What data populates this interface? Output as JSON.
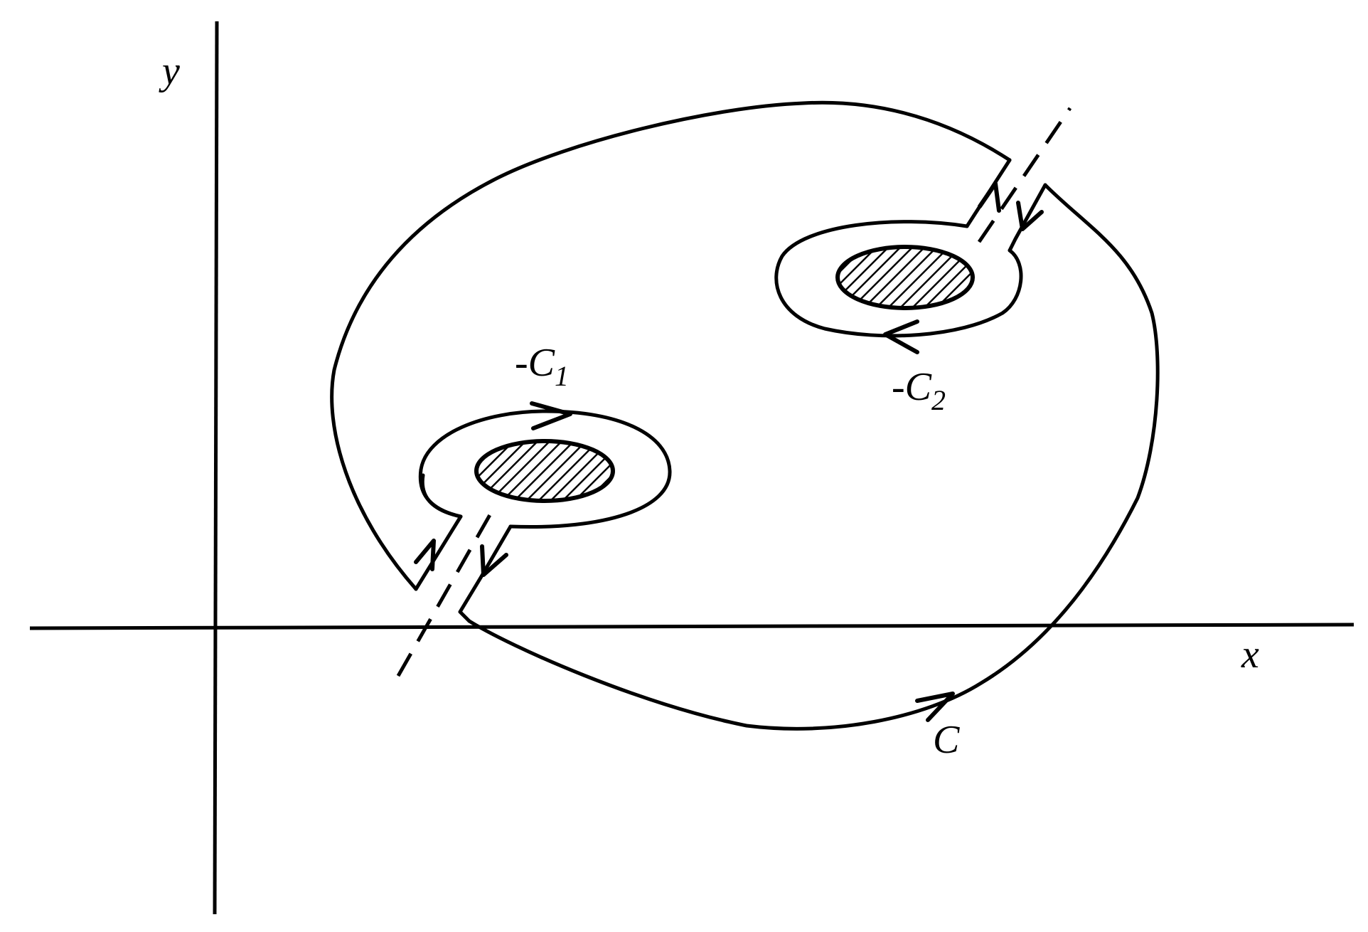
{
  "labels": {
    "y_axis": "y",
    "x_axis": "x",
    "outer_contour": "C",
    "inner_contour_1_prefix": "-C",
    "inner_contour_1_sub": "1",
    "inner_contour_2_prefix": "-C",
    "inner_contour_2_sub": "2"
  },
  "colors": {
    "ink": "#000000",
    "background": "#ffffff"
  }
}
